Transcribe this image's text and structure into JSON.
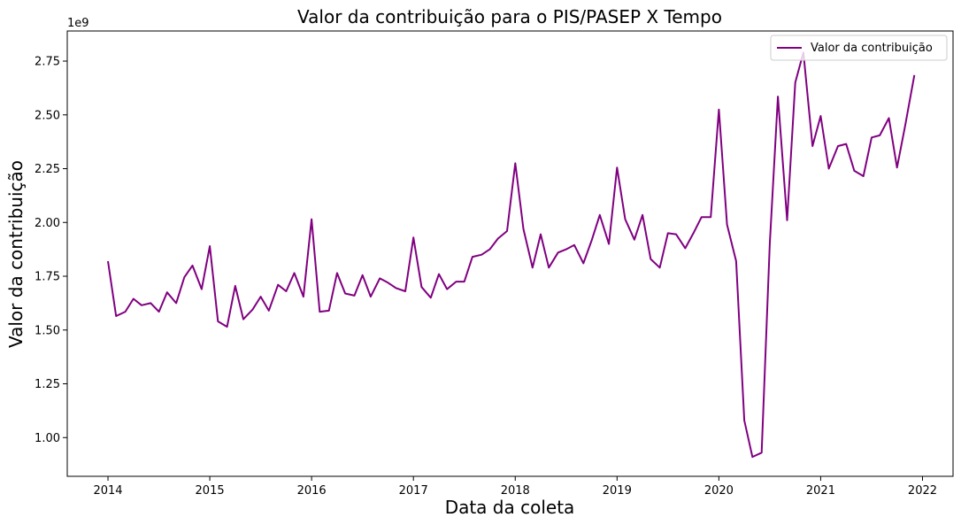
{
  "chart_data": {
    "type": "line",
    "title": "Valor da contribuição para o PIS/PASEP X Tempo",
    "xlabel": "Data da coleta",
    "ylabel": "Valor da contribuição",
    "y_offset_label": "1e9",
    "xlim": [
      2013.6,
      2022.3
    ],
    "ylim": [
      0.82,
      2.89
    ],
    "x_ticks": [
      2014,
      2015,
      2016,
      2017,
      2018,
      2019,
      2020,
      2021,
      2022
    ],
    "y_ticks": [
      "1.00",
      "1.25",
      "1.50",
      "1.75",
      "2.00",
      "2.25",
      "2.50",
      "2.75"
    ],
    "grid": false,
    "legend_position": "top-right",
    "series": [
      {
        "name": "Valor da contribuição",
        "color": "#800080",
        "x": [
          2014.0,
          2014.08,
          2014.17,
          2014.25,
          2014.33,
          2014.42,
          2014.5,
          2014.58,
          2014.67,
          2014.75,
          2014.83,
          2014.92,
          2015.0,
          2015.08,
          2015.17,
          2015.25,
          2015.33,
          2015.42,
          2015.5,
          2015.58,
          2015.67,
          2015.75,
          2015.83,
          2015.92,
          2016.0,
          2016.08,
          2016.17,
          2016.25,
          2016.33,
          2016.42,
          2016.5,
          2016.58,
          2016.67,
          2016.75,
          2016.83,
          2016.92,
          2017.0,
          2017.08,
          2017.17,
          2017.25,
          2017.33,
          2017.42,
          2017.5,
          2017.58,
          2017.67,
          2017.75,
          2017.83,
          2017.92,
          2018.0,
          2018.08,
          2018.17,
          2018.25,
          2018.33,
          2018.42,
          2018.5,
          2018.58,
          2018.67,
          2018.75,
          2018.83,
          2018.92,
          2019.0,
          2019.08,
          2019.17,
          2019.25,
          2019.33,
          2019.42,
          2019.5,
          2019.58,
          2019.67,
          2019.75,
          2019.83,
          2019.92,
          2020.0,
          2020.08,
          2020.17,
          2020.25,
          2020.33,
          2020.42,
          2020.5,
          2020.58,
          2020.67,
          2020.75,
          2020.83,
          2020.92,
          2021.0,
          2021.08,
          2021.17,
          2021.25,
          2021.33,
          2021.42,
          2021.5,
          2021.58,
          2021.67,
          2021.75,
          2021.83,
          2021.92
        ],
        "values": [
          1.82,
          1.565,
          1.585,
          1.645,
          1.615,
          1.625,
          1.585,
          1.675,
          1.625,
          1.745,
          1.8,
          1.69,
          1.89,
          1.54,
          1.515,
          1.705,
          1.55,
          1.595,
          1.655,
          1.59,
          1.71,
          1.68,
          1.765,
          1.655,
          2.015,
          1.585,
          1.59,
          1.765,
          1.67,
          1.66,
          1.755,
          1.655,
          1.74,
          1.72,
          1.695,
          1.68,
          1.93,
          1.7,
          1.65,
          1.76,
          1.69,
          1.725,
          1.725,
          1.84,
          1.85,
          1.875,
          1.925,
          1.96,
          2.275,
          1.97,
          1.79,
          1.945,
          1.79,
          1.86,
          1.875,
          1.895,
          1.81,
          1.915,
          2.035,
          1.9,
          2.255,
          2.015,
          1.92,
          2.035,
          1.83,
          1.79,
          1.95,
          1.945,
          1.88,
          1.95,
          2.025,
          2.025,
          2.525,
          1.99,
          1.82,
          1.08,
          0.91,
          0.93,
          1.9,
          2.585,
          2.01,
          2.65,
          2.79,
          2.355,
          2.495,
          2.25,
          2.355,
          2.365,
          2.24,
          2.215,
          2.395,
          2.405,
          2.485,
          2.255,
          2.45,
          2.685
        ]
      }
    ]
  }
}
